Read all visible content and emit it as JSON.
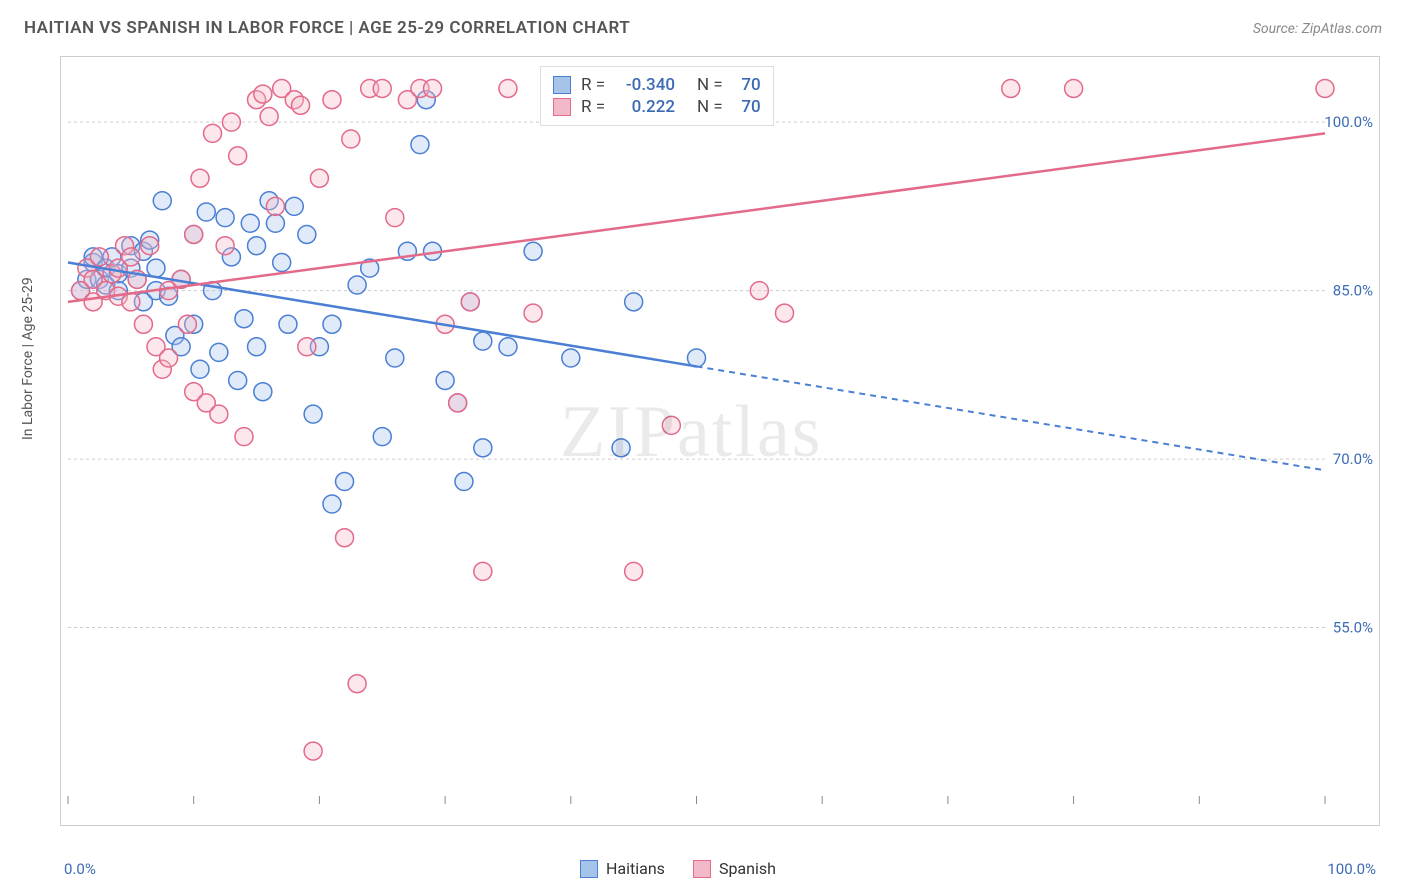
{
  "title": "HAITIAN VS SPANISH IN LABOR FORCE | AGE 25-29 CORRELATION CHART",
  "source": "Source: ZipAtlas.com",
  "ylabel": "In Labor Force | Age 25-29",
  "watermark": {
    "zip": "ZIP",
    "atlas": "atlas"
  },
  "chart": {
    "type": "scatter",
    "background_color": "#ffffff",
    "grid_color": "#cccccc",
    "frame_color": "#cccccc",
    "xlim": [
      0,
      100
    ],
    "ylim": [
      40,
      105
    ],
    "ytick_values": [
      55,
      70,
      85,
      100
    ],
    "ytick_labels": [
      "55.0%",
      "70.0%",
      "85.0%",
      "100.0%"
    ],
    "xtick_values": [
      0,
      10,
      20,
      30,
      40,
      50,
      60,
      70,
      80,
      90,
      100
    ],
    "xlabel_min": "0.0%",
    "xlabel_max": "100.0%",
    "label_color": "#3b6bb5",
    "label_fontsize": 15,
    "marker_radius": 9,
    "marker_opacity": 0.35,
    "series": [
      {
        "key": "haitians",
        "label": "Haitians",
        "stroke": "#4a7fd4",
        "fill": "#a6c3ea",
        "correlation": {
          "R": "-0.340",
          "N": "70"
        },
        "trend": {
          "x1": 0,
          "y1": 87.5,
          "x2": 100,
          "y2": 69,
          "solid_until_x": 50
        },
        "points": [
          [
            1,
            85
          ],
          [
            1.5,
            86
          ],
          [
            2,
            87.5
          ],
          [
            2,
            88
          ],
          [
            2.5,
            86
          ],
          [
            3,
            87
          ],
          [
            3,
            85.5
          ],
          [
            3.5,
            88
          ],
          [
            4,
            86.5
          ],
          [
            4,
            85
          ],
          [
            5,
            89
          ],
          [
            5,
            87
          ],
          [
            5.5,
            86
          ],
          [
            6,
            88.5
          ],
          [
            6,
            84
          ],
          [
            6.5,
            89.5
          ],
          [
            7,
            85
          ],
          [
            7,
            87
          ],
          [
            7.5,
            93
          ],
          [
            8,
            84.5
          ],
          [
            8.5,
            81
          ],
          [
            9,
            86
          ],
          [
            9,
            80
          ],
          [
            10,
            90
          ],
          [
            10,
            82
          ],
          [
            10.5,
            78
          ],
          [
            11,
            92
          ],
          [
            11.5,
            85
          ],
          [
            12,
            79.5
          ],
          [
            12.5,
            91.5
          ],
          [
            13,
            88
          ],
          [
            13.5,
            77
          ],
          [
            14,
            82.5
          ],
          [
            14.5,
            91
          ],
          [
            15,
            89
          ],
          [
            15,
            80
          ],
          [
            15.5,
            76
          ],
          [
            16,
            93
          ],
          [
            16.5,
            91
          ],
          [
            17,
            87.5
          ],
          [
            17.5,
            82
          ],
          [
            18,
            92.5
          ],
          [
            19,
            90
          ],
          [
            19.5,
            74
          ],
          [
            20,
            80
          ],
          [
            21,
            66
          ],
          [
            21,
            82
          ],
          [
            22,
            68
          ],
          [
            23,
            85.5
          ],
          [
            24,
            87
          ],
          [
            25,
            72
          ],
          [
            26,
            79
          ],
          [
            27,
            88.5
          ],
          [
            28,
            98
          ],
          [
            28.5,
            102
          ],
          [
            29,
            88.5
          ],
          [
            30,
            77
          ],
          [
            31,
            75
          ],
          [
            31.5,
            68
          ],
          [
            32,
            84
          ],
          [
            33,
            80.5
          ],
          [
            33,
            71
          ],
          [
            35,
            80
          ],
          [
            37,
            88.5
          ],
          [
            40,
            79
          ],
          [
            44,
            71
          ],
          [
            45,
            84
          ],
          [
            50,
            79
          ]
        ]
      },
      {
        "key": "spanish",
        "label": "Spanish",
        "stroke": "#e46a8a",
        "fill": "#f4b9c9",
        "correlation": {
          "R": "0.222",
          "N": "70"
        },
        "trend": {
          "x1": 0,
          "y1": 84,
          "x2": 100,
          "y2": 99,
          "solid_until_x": 100
        },
        "points": [
          [
            1,
            85
          ],
          [
            1.5,
            87
          ],
          [
            2,
            84
          ],
          [
            2,
            86
          ],
          [
            2.5,
            88
          ],
          [
            3,
            85
          ],
          [
            3.5,
            86.5
          ],
          [
            4,
            87
          ],
          [
            4,
            84.5
          ],
          [
            4.5,
            89
          ],
          [
            5,
            88
          ],
          [
            5,
            84
          ],
          [
            5.5,
            86
          ],
          [
            6,
            82
          ],
          [
            6.5,
            89
          ],
          [
            7,
            80
          ],
          [
            7.5,
            78
          ],
          [
            8,
            79
          ],
          [
            8,
            85
          ],
          [
            9,
            86
          ],
          [
            9.5,
            82
          ],
          [
            10,
            90
          ],
          [
            10,
            76
          ],
          [
            10.5,
            95
          ],
          [
            11,
            75
          ],
          [
            11.5,
            99
          ],
          [
            12,
            74
          ],
          [
            12.5,
            89
          ],
          [
            13,
            100
          ],
          [
            13.5,
            97
          ],
          [
            14,
            72
          ],
          [
            15,
            102
          ],
          [
            15.5,
            102.5
          ],
          [
            16,
            100.5
          ],
          [
            16.5,
            92.5
          ],
          [
            17,
            103
          ],
          [
            18,
            102
          ],
          [
            18.5,
            101.5
          ],
          [
            19,
            80
          ],
          [
            19.5,
            44
          ],
          [
            20,
            95
          ],
          [
            21,
            102
          ],
          [
            22,
            63
          ],
          [
            22.5,
            98.5
          ],
          [
            23,
            50
          ],
          [
            24,
            103
          ],
          [
            25,
            103
          ],
          [
            26,
            91.5
          ],
          [
            27,
            102
          ],
          [
            28,
            103
          ],
          [
            29,
            103
          ],
          [
            30,
            82
          ],
          [
            31,
            75
          ],
          [
            32,
            84
          ],
          [
            33,
            60
          ],
          [
            35,
            103
          ],
          [
            37,
            83
          ],
          [
            40,
            102
          ],
          [
            43,
            103
          ],
          [
            45,
            60
          ],
          [
            46,
            103
          ],
          [
            48,
            73
          ],
          [
            50,
            103
          ],
          [
            55,
            85
          ],
          [
            57,
            83
          ],
          [
            75,
            103
          ],
          [
            80,
            103
          ],
          [
            100,
            103
          ]
        ]
      }
    ]
  },
  "legend_top": {
    "rows": [
      {
        "series": 0,
        "r_label": "R =",
        "n_label": "N ="
      },
      {
        "series": 1,
        "r_label": "R =",
        "n_label": "N ="
      }
    ]
  }
}
